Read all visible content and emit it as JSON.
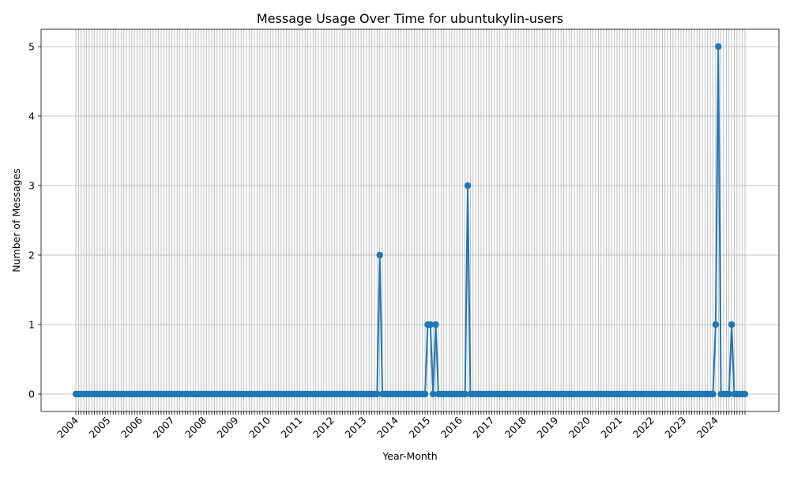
{
  "chart_data": {
    "type": "line",
    "title": "Message Usage Over Time for ubuntukylin-users",
    "xlabel": "Year-Month",
    "ylabel": "Number of Messages",
    "x_start": "2004-01",
    "x_end": "2024-12",
    "ylim": [
      -0.25,
      5.25
    ],
    "yticks": [
      0,
      1,
      2,
      3,
      4,
      5
    ],
    "xtick_labels": [
      "2004",
      "2005",
      "2006",
      "2007",
      "2008",
      "2009",
      "2010",
      "2011",
      "2012",
      "2013",
      "2014",
      "2015",
      "2016",
      "2017",
      "2018",
      "2019",
      "2020",
      "2021",
      "2022",
      "2023",
      "2024"
    ],
    "grid": true,
    "series_color": "#1f77b4",
    "nonzero_points": [
      {
        "x": "2013-07",
        "y": 2
      },
      {
        "x": "2015-01",
        "y": 1
      },
      {
        "x": "2015-02",
        "y": 1
      },
      {
        "x": "2015-04",
        "y": 1
      },
      {
        "x": "2016-04",
        "y": 3
      },
      {
        "x": "2024-01",
        "y": 1
      },
      {
        "x": "2024-02",
        "y": 5
      },
      {
        "x": "2024-07",
        "y": 1
      }
    ],
    "zero_baseline_value": 0
  }
}
